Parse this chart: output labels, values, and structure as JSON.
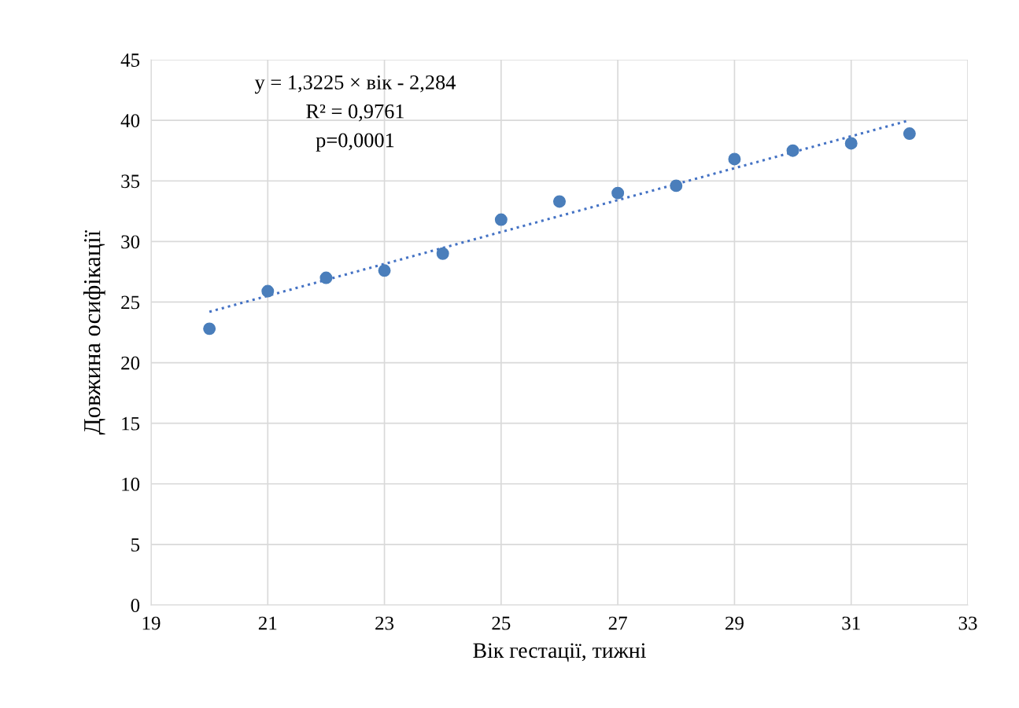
{
  "chart_data": {
    "type": "scatter",
    "xlabel": "Вік гестації, тижні",
    "ylabel": "Довжина осифікації",
    "x": [
      20,
      21,
      22,
      23,
      24,
      25,
      26,
      27,
      28,
      29,
      30,
      31,
      32
    ],
    "series": [
      {
        "color": "#4a7ebb",
        "marker": "circle",
        "values": [
          22.8,
          25.9,
          27.0,
          27.6,
          29.0,
          31.8,
          33.3,
          34.0,
          34.6,
          36.8,
          37.5,
          38.1,
          38.9
        ]
      },
      {
        "type": "line",
        "color": "#4472c4",
        "marker": "none",
        "line_style": "dotted",
        "x": [
          20,
          32
        ],
        "values": [
          24.2,
          40.0
        ]
      }
    ],
    "annotations": [
      "y = 1,3225 × вік - 2,284",
      "R² = 0,9761",
      "p=0,0001"
    ],
    "xlim": [
      19,
      33
    ],
    "xticks": [
      19,
      21,
      23,
      25,
      27,
      29,
      31,
      33
    ],
    "ylim": [
      0,
      45
    ],
    "yticks": [
      0,
      5,
      10,
      15,
      20,
      25,
      30,
      35,
      40,
      45
    ],
    "grid": true,
    "legend": false
  }
}
